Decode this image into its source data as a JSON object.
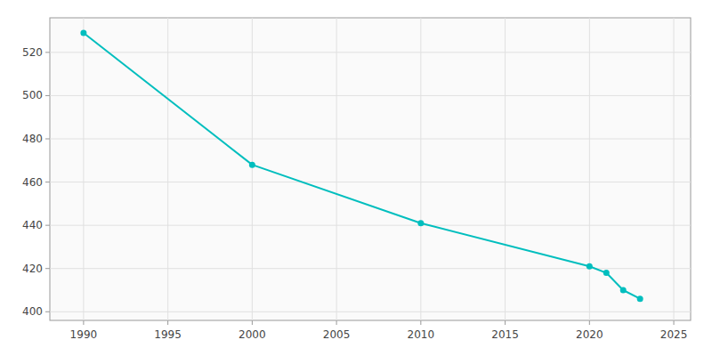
{
  "chart_data": {
    "type": "line",
    "x": [
      1990,
      2000,
      2010,
      2020,
      2021,
      2022,
      2023
    ],
    "values": [
      529,
      468,
      441,
      421,
      418,
      410,
      406
    ],
    "color": "#00BEBE",
    "marker": "circle",
    "xlim": [
      1988,
      2026
    ],
    "ylim": [
      396,
      536
    ],
    "xticks": [
      1990,
      1995,
      2000,
      2005,
      2010,
      2015,
      2020,
      2025
    ],
    "yticks": [
      400,
      420,
      440,
      460,
      480,
      500,
      520
    ],
    "grid": true
  }
}
